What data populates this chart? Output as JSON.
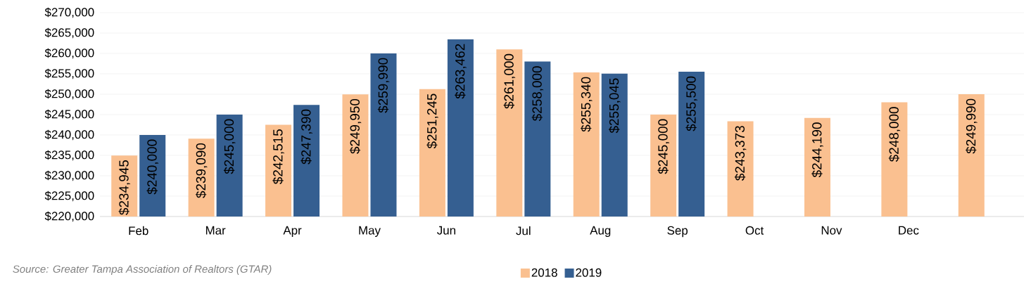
{
  "chart_data": {
    "type": "bar",
    "categories": [
      "Feb",
      "Mar",
      "Apr",
      "May",
      "Jun",
      "Jul",
      "Aug",
      "Sep",
      "Oct",
      "Nov",
      "Dec",
      null
    ],
    "series": [
      {
        "name": "2018",
        "color": "#fac090",
        "values": [
          234945,
          239090,
          242515,
          249950,
          251245,
          261000,
          255340,
          245000,
          243373,
          244190,
          248000,
          249990
        ],
        "value_labels": [
          "$234,945",
          "$239,090",
          "$242,515",
          "$249,950",
          "$251,245",
          "$261,000",
          "$255,340",
          "$245,000",
          "$243,373",
          "$244,190",
          "$248,000",
          "$249,990"
        ]
      },
      {
        "name": "2019",
        "color": "#355f91",
        "values": [
          240000,
          245000,
          247390,
          259990,
          263462,
          258000,
          255045,
          255500,
          null,
          null,
          null,
          null
        ],
        "value_labels": [
          "$240,000",
          "$245,000",
          "$247,390",
          "$259,990",
          "$263,462",
          "$258,000",
          "$255,045",
          "$255,500",
          null,
          null,
          null,
          null
        ]
      }
    ],
    "ylim": [
      220000,
      270000
    ],
    "yticks": [
      {
        "value": 220000,
        "label": "$220,000"
      },
      {
        "value": 225000,
        "label": "$225,000"
      },
      {
        "value": 230000,
        "label": "$230,000"
      },
      {
        "value": 235000,
        "label": "$235,000"
      },
      {
        "value": 240000,
        "label": "$240,000"
      },
      {
        "value": 245000,
        "label": "$245,000"
      },
      {
        "value": 250000,
        "label": "$250,000"
      },
      {
        "value": 255000,
        "label": "$255,000"
      },
      {
        "value": 260000,
        "label": "$260,000"
      },
      {
        "value": 265000,
        "label": "$265,000"
      },
      {
        "value": 270000,
        "label": "$270,000"
      }
    ],
    "grid": "y",
    "legend": "bottom",
    "annotations": [
      "Source:  Greater Tampa Association of Realtors (GTAR)"
    ]
  }
}
